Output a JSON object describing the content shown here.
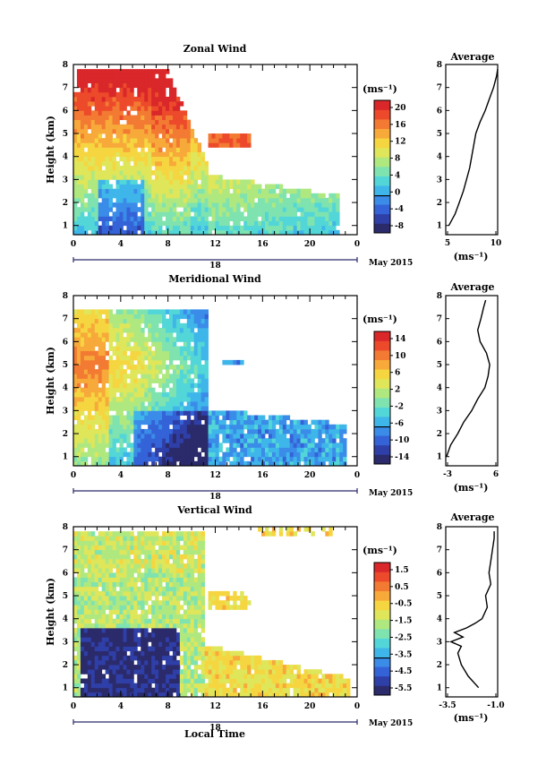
{
  "panels": [
    {
      "title": "Zonal Wind",
      "ylabel": "Height (km)",
      "yticks": [
        "1",
        "2",
        "3",
        "4",
        "5",
        "6",
        "7",
        "8"
      ],
      "xticks": [
        "0",
        "4",
        "8",
        "12",
        "16",
        "20",
        "0"
      ],
      "date_day": "18",
      "date_label": "May 2015",
      "colorbar": {
        "unit": "(ms⁻¹)",
        "ticks": [
          "20",
          "16",
          "12",
          "8",
          "4",
          "0",
          "-4",
          "-8"
        ]
      },
      "avg_title": "Average",
      "avg_xticks": [
        "5",
        "10"
      ],
      "avg_unit": "(ms⁻¹)"
    },
    {
      "title": "Meridional Wind",
      "ylabel": "Height (km)",
      "yticks": [
        "1",
        "2",
        "3",
        "4",
        "5",
        "6",
        "7",
        "8"
      ],
      "xticks": [
        "0",
        "4",
        "8",
        "12",
        "16",
        "20",
        "0"
      ],
      "date_day": "18",
      "date_label": "May 2015",
      "colorbar": {
        "unit": "(ms⁻¹)",
        "ticks": [
          "14",
          "10",
          "6",
          "2",
          "-2",
          "-6",
          "-10",
          "-14"
        ]
      },
      "avg_title": "Average",
      "avg_xticks": [
        "-3",
        "6"
      ],
      "avg_unit": "(ms⁻¹)"
    },
    {
      "title": "Vertical Wind",
      "ylabel": "Height (km)",
      "yticks": [
        "1",
        "2",
        "3",
        "4",
        "5",
        "6",
        "7",
        "8"
      ],
      "xticks": [
        "0",
        "4",
        "8",
        "12",
        "16",
        "20",
        "0"
      ],
      "date_day": "18",
      "date_label": "May 2015",
      "xlabel": "Local Time",
      "colorbar": {
        "unit": "(ms⁻¹)",
        "ticks": [
          "1.5",
          "0.5",
          "-0.5",
          "-1.5",
          "-2.5",
          "-3.5",
          "-4.5",
          "-5.5"
        ]
      },
      "avg_title": "Average",
      "avg_xticks": [
        "-3.5",
        "-1.0"
      ],
      "avg_unit": "(ms⁻¹)"
    }
  ],
  "colormap": [
    "#2b2a6b",
    "#2f3fa8",
    "#3463d8",
    "#3a8ce8",
    "#3fb6ea",
    "#52d6d8",
    "#7fe3b0",
    "#b0e880",
    "#dfe65a",
    "#f6d640",
    "#f7a93a",
    "#f37a32",
    "#ec4a2a",
    "#d9272a"
  ],
  "chart_data": [
    {
      "type": "heatmap",
      "title": "Zonal Wind",
      "ylabel": "Height (km)",
      "xlim": [
        0,
        24
      ],
      "ylim": [
        0.6,
        8
      ],
      "vlim": [
        -10,
        22
      ],
      "unit": "ms-1",
      "avg_profile": {
        "xlim": [
          5,
          10
        ],
        "height": [
          1.0,
          1.5,
          2.0,
          2.5,
          3.0,
          3.5,
          4.0,
          4.5,
          5.0,
          5.5,
          6.0,
          6.5,
          7.0,
          7.5,
          7.8
        ],
        "value": [
          5.3,
          5.9,
          6.3,
          6.7,
          7.0,
          7.3,
          7.5,
          7.7,
          7.9,
          8.3,
          8.8,
          9.2,
          9.6,
          9.9,
          10.0
        ]
      }
    },
    {
      "type": "heatmap",
      "title": "Meridional Wind",
      "ylabel": "Height (km)",
      "xlim": [
        0,
        24
      ],
      "ylim": [
        0.6,
        8
      ],
      "vlim": [
        -16,
        16
      ],
      "unit": "ms-1",
      "avg_profile": {
        "xlim": [
          -5,
          8
        ],
        "height": [
          1.0,
          1.5,
          2.0,
          2.5,
          3.0,
          3.5,
          4.0,
          4.5,
          5.0,
          5.5,
          6.0,
          6.5,
          7.0,
          7.5,
          7.8
        ],
        "value": [
          -4.8,
          -3.8,
          -2.0,
          -0.5,
          1.5,
          3.0,
          4.8,
          5.6,
          6.0,
          5.2,
          3.6,
          3.0,
          3.8,
          4.5,
          5.0
        ]
      }
    },
    {
      "type": "heatmap",
      "title": "Vertical Wind",
      "ylabel": "Height (km)",
      "xlabel": "Local Time",
      "xlim": [
        0,
        24
      ],
      "ylim": [
        0.6,
        8
      ],
      "vlim": [
        -6,
        2
      ],
      "unit": "ms-1",
      "avg_profile": {
        "xlim": [
          -3.5,
          -0.5
        ],
        "height": [
          1.0,
          1.5,
          2.0,
          2.5,
          2.8,
          3.0,
          3.2,
          3.4,
          3.6,
          3.8,
          4.0,
          4.5,
          5.0,
          5.5,
          6.0,
          6.5,
          7.0,
          7.5,
          7.8
        ],
        "value": [
          -1.6,
          -2.2,
          -2.6,
          -2.8,
          -2.6,
          -3.2,
          -2.5,
          -3.0,
          -2.3,
          -1.8,
          -1.4,
          -1.1,
          -1.2,
          -0.9,
          -1.0,
          -0.9,
          -0.8,
          -0.7,
          -0.7
        ]
      }
    }
  ]
}
